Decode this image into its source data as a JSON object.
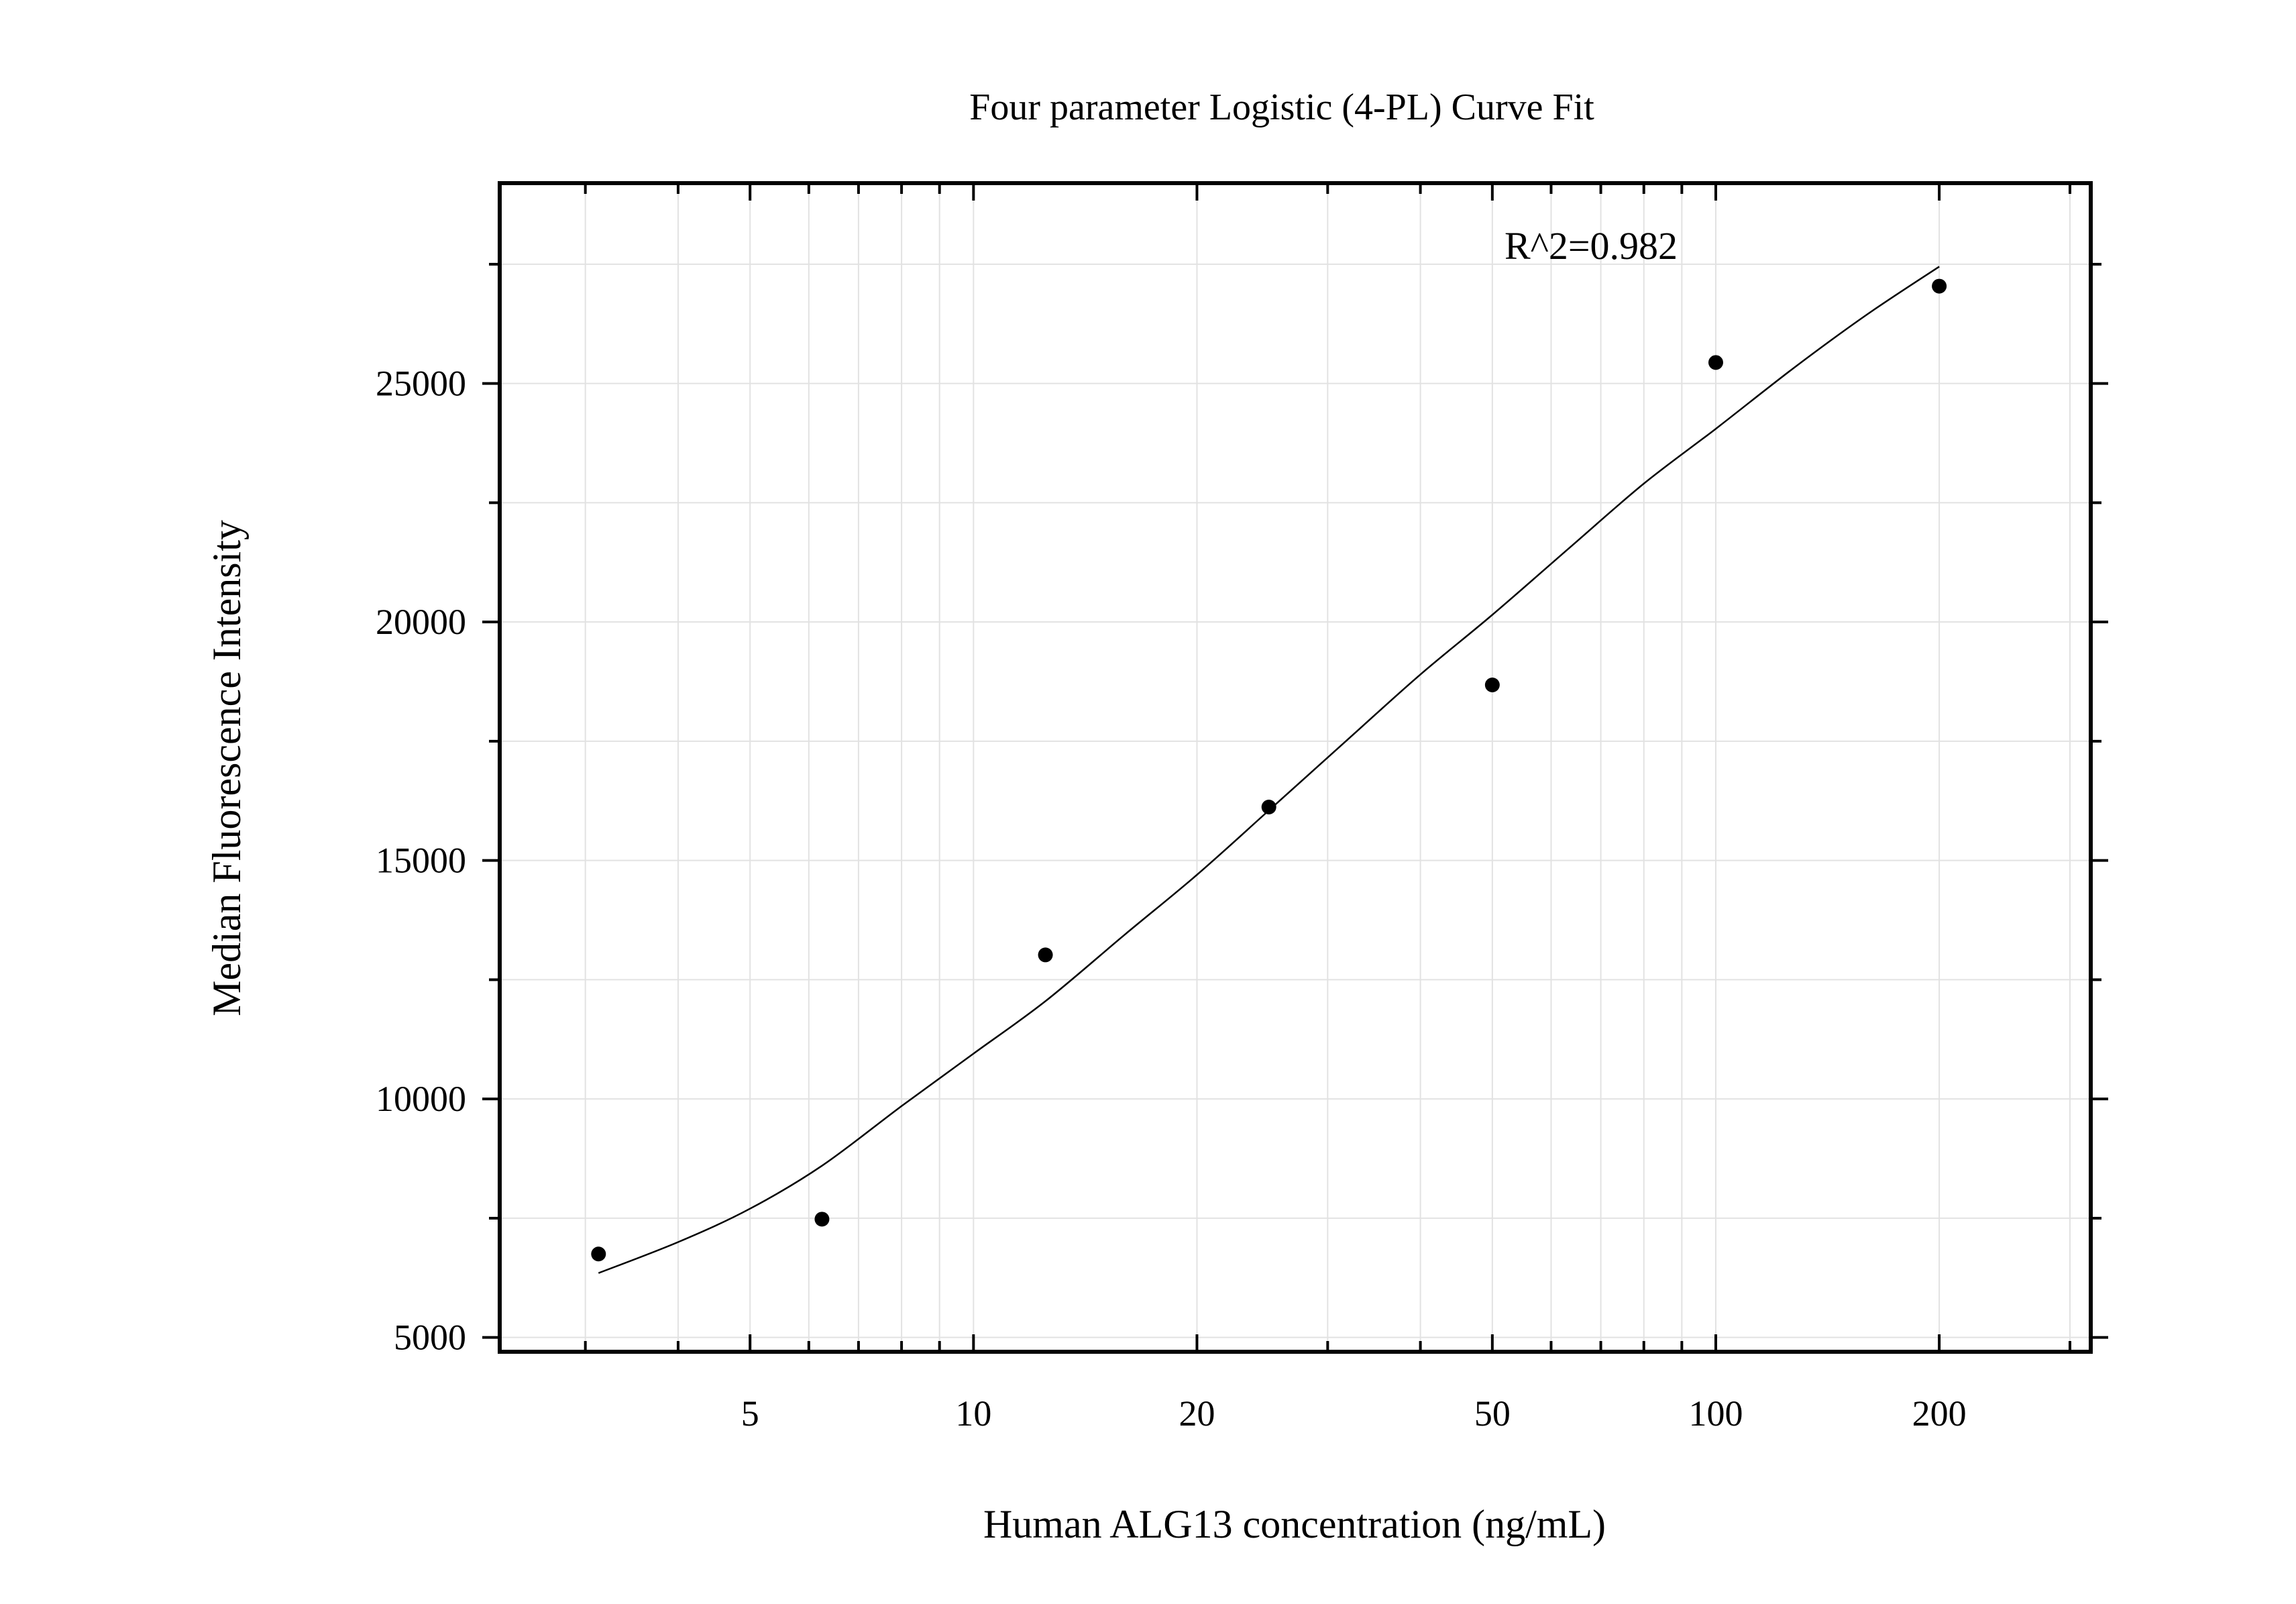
{
  "chart_data": {
    "type": "scatter",
    "title": "Four parameter Logistic (4-PL) Curve Fit",
    "xlabel": "Human ALG13 concentration (ng/mL)",
    "ylabel": "Median Fluorescence Intensity",
    "x_scale": "log",
    "xlim": [
      2.3,
      320
    ],
    "ylim": [
      4700,
      29200
    ],
    "x_ticks": [
      5,
      10,
      20,
      50,
      100,
      200
    ],
    "x_tick_labels": [
      "5",
      "10",
      "20",
      "50",
      "100",
      "200"
    ],
    "y_ticks": [
      5000,
      10000,
      15000,
      20000,
      25000
    ],
    "y_tick_labels": [
      "5000",
      "10000",
      "15000",
      "20000",
      "25000"
    ],
    "y_minor_ticks": [
      7500,
      12500,
      17500,
      22500,
      27500
    ],
    "grid": true,
    "annotation": "R^2=0.982",
    "points": {
      "x": [
        3.125,
        6.25,
        12.5,
        25,
        50,
        100,
        200
      ],
      "y": [
        6750,
        7480,
        13020,
        16120,
        18680,
        25440,
        27040
      ]
    },
    "fit": {
      "model": "4PL",
      "points": [
        [
          3.125,
          6350
        ],
        [
          4.0,
          7000
        ],
        [
          5.0,
          7700
        ],
        [
          6.25,
          8600
        ],
        [
          8.0,
          9850
        ],
        [
          10.0,
          10950
        ],
        [
          12.5,
          12050
        ],
        [
          16.0,
          13450
        ],
        [
          20.0,
          14700
        ],
        [
          25.0,
          16050
        ],
        [
          32.0,
          17550
        ],
        [
          40.0,
          18900
        ],
        [
          50.0,
          20150
        ],
        [
          64.0,
          21600
        ],
        [
          80.0,
          22900
        ],
        [
          100.0,
          24050
        ],
        [
          128.0,
          25350
        ],
        [
          160.0,
          26450
        ],
        [
          200.0,
          27450
        ]
      ]
    }
  }
}
